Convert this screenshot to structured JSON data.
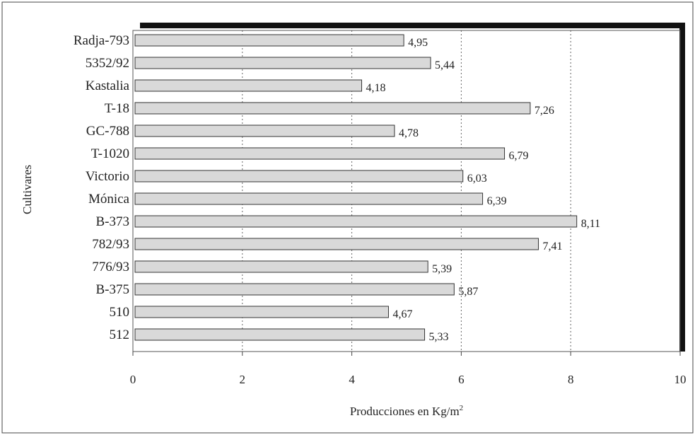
{
  "chart_data": {
    "type": "bar",
    "orientation": "horizontal",
    "categories": [
      "Radja-793",
      "5352/92",
      "Kastalia",
      "T-18",
      "GC-788",
      "T-1020",
      "Victorio",
      "Mónica",
      "B-373",
      "782/93",
      "776/93",
      "B-375",
      "510",
      "512"
    ],
    "values": [
      4.95,
      5.44,
      4.18,
      7.26,
      4.78,
      6.79,
      6.03,
      6.39,
      8.11,
      7.41,
      5.39,
      5.87,
      4.67,
      5.33
    ],
    "value_labels": [
      "4,95",
      "5,44",
      "4,18",
      "7,26",
      "4,78",
      "6,79",
      "6,03",
      "6,39",
      "8,11",
      "7,41",
      "5,39",
      "5,87",
      "4,67",
      "5,33"
    ],
    "xticks": [
      "0",
      "2",
      "4",
      "6",
      "8",
      "10"
    ],
    "xlim": [
      0,
      10
    ],
    "xlabel_main": "Producciones en Kg/m",
    "xlabel_sup": "2",
    "ylabel": "Cultivares",
    "grid": "vertical dotted",
    "bar_fill": "#d9d9d9",
    "bar_stroke": "#333333"
  }
}
